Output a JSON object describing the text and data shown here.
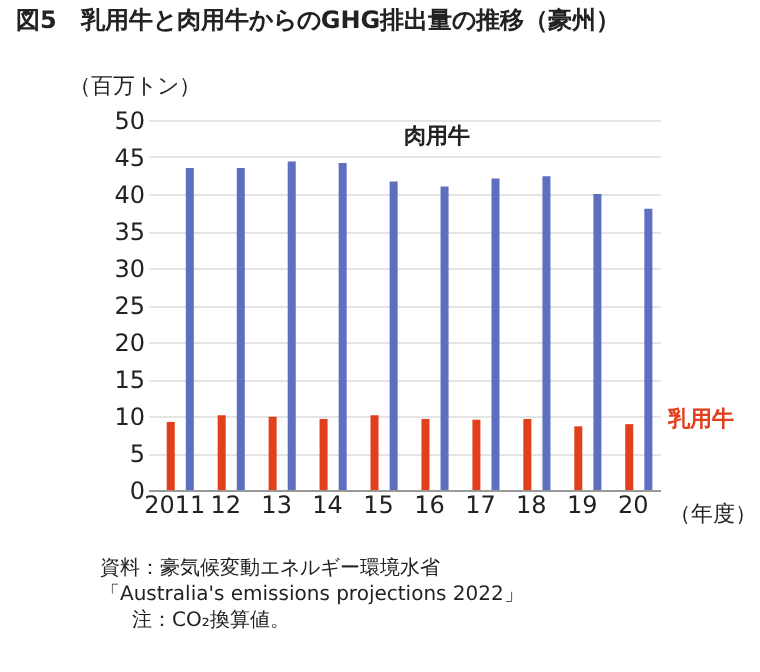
{
  "chart_data": {
    "type": "bar",
    "title": "図5　乳用牛と肉用牛からのGHG排出量の推移（豪州）",
    "ylabel": "（百万トン）",
    "xlabel": "（年度）",
    "categories": [
      "2011",
      "12",
      "13",
      "14",
      "15",
      "16",
      "17",
      "18",
      "19",
      "20"
    ],
    "series": [
      {
        "name": "乳用牛",
        "color": "#e2401c",
        "values": [
          9.2,
          10.1,
          9.9,
          9.6,
          10.1,
          9.6,
          9.5,
          9.6,
          8.6,
          8.9
        ]
      },
      {
        "name": "肉用牛",
        "color": "#5f6fc0",
        "values": [
          43.5,
          43.5,
          44.4,
          44.2,
          41.7,
          41.0,
          42.1,
          42.4,
          40.0,
          38.0
        ]
      }
    ],
    "ylim": [
      0,
      50
    ],
    "yticks": [
      0,
      5,
      10,
      15,
      20,
      25,
      30,
      35,
      40,
      45,
      50
    ],
    "grid": "y",
    "legend": false,
    "annotations": [
      "資料：豪気候変動エネルギー環境水省",
      "「Australia's emissions projections 2022」",
      "注：CO₂換算値。"
    ]
  }
}
